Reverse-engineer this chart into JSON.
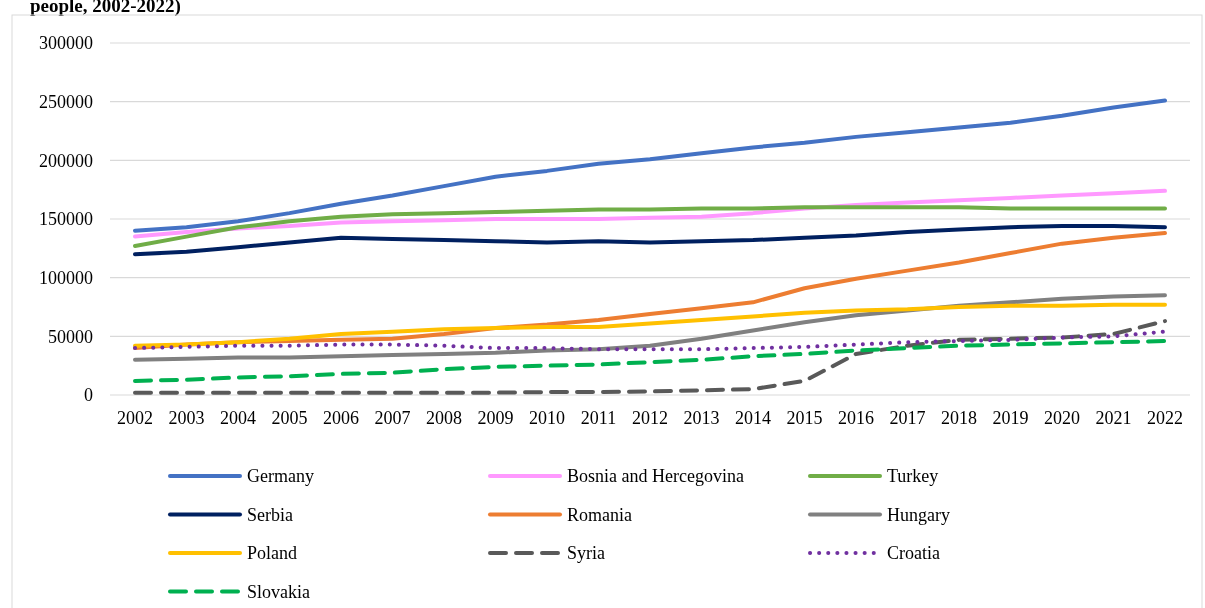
{
  "chart_data": {
    "type": "line",
    "title": "people, 2002-2022)",
    "categories": [
      "2002",
      "2003",
      "2004",
      "2005",
      "2006",
      "2007",
      "2008",
      "2009",
      "2010",
      "2011",
      "2012",
      "2013",
      "2014",
      "2015",
      "2016",
      "2017",
      "2018",
      "2019",
      "2020",
      "2021",
      "2022"
    ],
    "ylim": [
      0,
      300000
    ],
    "yticks": [
      0,
      50000,
      100000,
      150000,
      200000,
      250000,
      300000
    ],
    "grid": "y",
    "legend": "bottom",
    "series": [
      {
        "name": "Germany",
        "color": "#4472c4",
        "line_style": "solid",
        "values": [
          140000,
          143000,
          148000,
          155000,
          163000,
          170000,
          178000,
          186000,
          191000,
          197000,
          201000,
          206000,
          211000,
          215000,
          220000,
          224000,
          228000,
          232000,
          238000,
          245000,
          251000
        ]
      },
      {
        "name": "Bosnia and Hercegovina",
        "color": "#ff99ff",
        "line_style": "solid",
        "values": [
          135000,
          139000,
          142000,
          144000,
          147000,
          148000,
          149000,
          150000,
          150000,
          150000,
          151000,
          152000,
          155000,
          159000,
          162000,
          164000,
          166000,
          168000,
          170000,
          172000,
          174000
        ]
      },
      {
        "name": "Turkey",
        "color": "#70ad47",
        "line_style": "solid",
        "values": [
          127000,
          135000,
          143000,
          148000,
          152000,
          154000,
          155000,
          156000,
          157000,
          158000,
          158000,
          159000,
          159000,
          160000,
          160000,
          160000,
          160000,
          159000,
          159000,
          159000,
          159000
        ]
      },
      {
        "name": "Serbia",
        "color": "#002060",
        "line_style": "solid",
        "values": [
          120000,
          122000,
          126000,
          130000,
          134000,
          133000,
          132000,
          131000,
          130000,
          131000,
          130000,
          131000,
          132000,
          134000,
          136000,
          139000,
          141000,
          143000,
          144000,
          144000,
          143000
        ]
      },
      {
        "name": "Romania",
        "color": "#ed7d31",
        "line_style": "solid",
        "values": [
          40000,
          43000,
          45000,
          46000,
          47000,
          48000,
          52000,
          57000,
          60000,
          64000,
          69000,
          74000,
          79000,
          91000,
          99000,
          106000,
          113000,
          121000,
          129000,
          134000,
          138000
        ]
      },
      {
        "name": "Hungary",
        "color": "#808080",
        "line_style": "solid",
        "values": [
          30000,
          31000,
          32000,
          32000,
          33000,
          34000,
          35000,
          36000,
          38000,
          39000,
          42000,
          48000,
          55000,
          62000,
          68000,
          72000,
          76000,
          79000,
          82000,
          84000,
          85000
        ]
      },
      {
        "name": "Poland",
        "color": "#ffc000",
        "line_style": "solid",
        "values": [
          42000,
          43000,
          45000,
          48000,
          52000,
          54000,
          56000,
          57000,
          58000,
          58000,
          61000,
          64000,
          67000,
          70000,
          72000,
          73000,
          75000,
          76000,
          76000,
          77000,
          77000
        ]
      },
      {
        "name": "Syria",
        "color": "#595959",
        "line_style": "dashed",
        "values": [
          2000,
          2000,
          2000,
          2000,
          2000,
          2000,
          2000,
          2000,
          2500,
          2500,
          3000,
          4000,
          5000,
          12000,
          35000,
          42000,
          47000,
          48000,
          49000,
          52000,
          63000
        ]
      },
      {
        "name": "Croatia",
        "color": "#7030a0",
        "line_style": "dotted",
        "values": [
          40000,
          41000,
          42000,
          42000,
          43000,
          43000,
          42000,
          40000,
          40000,
          39000,
          39000,
          39000,
          40000,
          41000,
          43000,
          45000,
          46000,
          47000,
          49000,
          50000,
          54000
        ]
      },
      {
        "name": "Slovakia",
        "color": "#00b050",
        "line_style": "dashed",
        "values": [
          12000,
          13000,
          15000,
          16000,
          18000,
          19000,
          22000,
          24000,
          25000,
          26000,
          28000,
          30000,
          33000,
          35000,
          38000,
          40000,
          42000,
          43000,
          44000,
          45000,
          46000
        ]
      }
    ]
  }
}
